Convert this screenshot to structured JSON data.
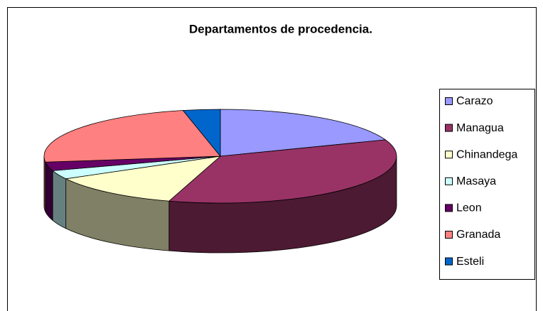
{
  "chart_data": {
    "type": "pie3d",
    "title": "Departamentos de procedencia.",
    "categories": [
      "Carazo",
      "Managua",
      "Chinandega",
      "Masaya",
      "Leon",
      "Granada",
      "Esteli"
    ],
    "values": [
      19.3,
      35.4,
      12.3,
      3,
      3,
      23.6,
      3.4
    ],
    "colors": [
      "#9999ff",
      "#993366",
      "#ffffcc",
      "#ccffff",
      "#660066",
      "#ff8080",
      "#0066cc"
    ],
    "legend": "right"
  }
}
